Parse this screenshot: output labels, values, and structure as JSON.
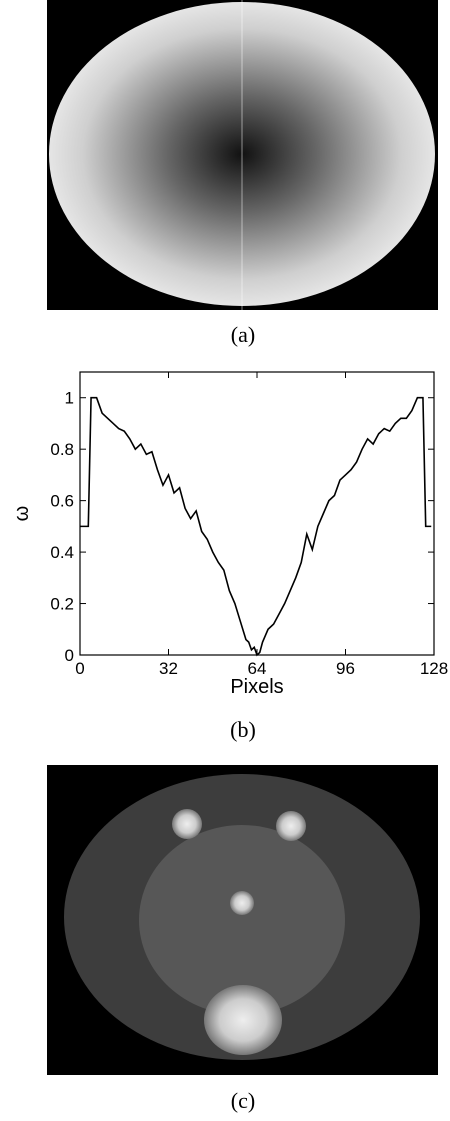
{
  "captions": [
    "(a)",
    "(b)",
    "(c)"
  ],
  "chart_data": {
    "type": "line",
    "xlabel": "Pixels",
    "ylabel": "ω",
    "x": [
      0,
      3,
      4,
      6,
      8,
      10,
      12,
      14,
      16,
      18,
      20,
      22,
      24,
      26,
      28,
      30,
      32,
      34,
      36,
      38,
      40,
      42,
      44,
      46,
      48,
      50,
      52,
      54,
      56,
      58,
      60,
      61,
      62,
      63,
      64,
      65,
      66,
      68,
      70,
      72,
      74,
      76,
      78,
      80,
      82,
      84,
      86,
      88,
      90,
      92,
      94,
      96,
      98,
      100,
      102,
      104,
      106,
      108,
      110,
      112,
      114,
      116,
      118,
      120,
      122,
      124,
      125,
      127
    ],
    "series": [
      {
        "color": "#000000",
        "values": [
          0.5,
          0.5,
          1,
          1,
          0.94,
          0.92,
          0.9,
          0.88,
          0.87,
          0.84,
          0.8,
          0.82,
          0.78,
          0.79,
          0.72,
          0.66,
          0.7,
          0.63,
          0.65,
          0.57,
          0.53,
          0.56,
          0.48,
          0.45,
          0.4,
          0.36,
          0.33,
          0.25,
          0.2,
          0.13,
          0.06,
          0.05,
          0.02,
          0.03,
          0,
          0.01,
          0.05,
          0.1,
          0.12,
          0.16,
          0.2,
          0.25,
          0.3,
          0.36,
          0.47,
          0.41,
          0.5,
          0.55,
          0.6,
          0.62,
          0.68,
          0.7,
          0.72,
          0.75,
          0.8,
          0.84,
          0.82,
          0.86,
          0.88,
          0.87,
          0.9,
          0.92,
          0.92,
          0.95,
          1,
          1,
          0.5,
          0.5
        ]
      }
    ],
    "xlim": [
      0,
      128
    ],
    "xticks": [
      0,
      32,
      64,
      96,
      128
    ],
    "ylim": [
      0,
      1.1
    ],
    "yticks": [
      0,
      0.2,
      0.4,
      0.6,
      0.8,
      1
    ]
  }
}
